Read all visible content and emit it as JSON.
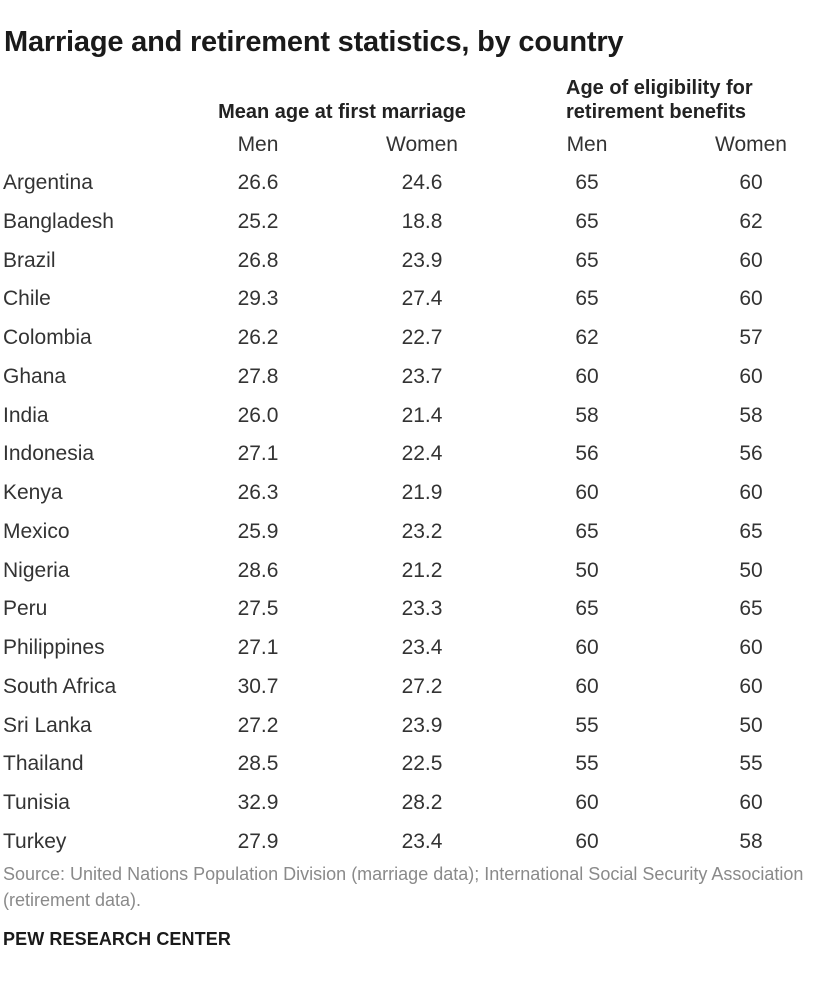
{
  "title": "Marriage and retirement statistics, by country",
  "groups": {
    "marriage": "Mean age at first marriage",
    "retirement": "Age of eligibility for retirement benefits"
  },
  "columns": [
    "Men",
    "Women",
    "Men",
    "Women"
  ],
  "source": "Source: United Nations Population Division (marriage data); International Social Security Association (retirement data).",
  "brand": "PEW RESEARCH CENTER",
  "chart_data": {
    "type": "table",
    "title": "Marriage and retirement statistics, by country",
    "column_groups": [
      {
        "name": "Mean age at first marriage",
        "columns": [
          "Men",
          "Women"
        ]
      },
      {
        "name": "Age of eligibility for retirement benefits",
        "columns": [
          "Men",
          "Women"
        ]
      }
    ],
    "rows": [
      {
        "country": "Argentina",
        "values": [
          "26.6",
          "24.6",
          "65",
          "60"
        ]
      },
      {
        "country": "Bangladesh",
        "values": [
          "25.2",
          "18.8",
          "65",
          "62"
        ]
      },
      {
        "country": "Brazil",
        "values": [
          "26.8",
          "23.9",
          "65",
          "60"
        ]
      },
      {
        "country": "Chile",
        "values": [
          "29.3",
          "27.4",
          "65",
          "60"
        ]
      },
      {
        "country": "Colombia",
        "values": [
          "26.2",
          "22.7",
          "62",
          "57"
        ]
      },
      {
        "country": "Ghana",
        "values": [
          "27.8",
          "23.7",
          "60",
          "60"
        ]
      },
      {
        "country": "India",
        "values": [
          "26.0",
          "21.4",
          "58",
          "58"
        ]
      },
      {
        "country": "Indonesia",
        "values": [
          "27.1",
          "22.4",
          "56",
          "56"
        ]
      },
      {
        "country": "Kenya",
        "values": [
          "26.3",
          "21.9",
          "60",
          "60"
        ]
      },
      {
        "country": "Mexico",
        "values": [
          "25.9",
          "23.2",
          "65",
          "65"
        ]
      },
      {
        "country": "Nigeria",
        "values": [
          "28.6",
          "21.2",
          "50",
          "50"
        ]
      },
      {
        "country": "Peru",
        "values": [
          "27.5",
          "23.3",
          "65",
          "65"
        ]
      },
      {
        "country": "Philippines",
        "values": [
          "27.1",
          "23.4",
          "60",
          "60"
        ]
      },
      {
        "country": "South Africa",
        "values": [
          "30.7",
          "27.2",
          "60",
          "60"
        ]
      },
      {
        "country": "Sri Lanka",
        "values": [
          "27.2",
          "23.9",
          "55",
          "50"
        ]
      },
      {
        "country": "Thailand",
        "values": [
          "28.5",
          "22.5",
          "55",
          "55"
        ]
      },
      {
        "country": "Tunisia",
        "values": [
          "32.9",
          "28.2",
          "60",
          "60"
        ]
      },
      {
        "country": "Turkey",
        "values": [
          "27.9",
          "23.4",
          "60",
          "58"
        ]
      }
    ]
  }
}
